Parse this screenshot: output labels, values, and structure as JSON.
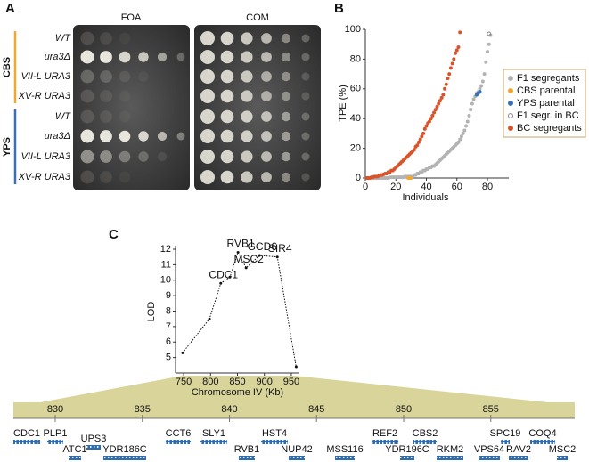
{
  "panel_a": {
    "label": "A",
    "columns": [
      "FOA",
      "COM"
    ],
    "groups": [
      {
        "name": "CBS",
        "color": "#f0a830",
        "rows": [
          "WT",
          "ura3Δ",
          "VII-L URA3",
          "XV-R URA3"
        ]
      },
      {
        "name": "YPS",
        "color": "#3a6fb5",
        "rows": [
          "WT",
          "ura3Δ",
          "VII-L URA3",
          "XV-R URA3"
        ]
      }
    ]
  },
  "chart_data": [
    {
      "type": "scatter",
      "panel": "B",
      "y_label": "TPE (%)",
      "x_label": "Individuals",
      "xlim": [
        0,
        94
      ],
      "xticks": [
        0,
        20,
        40,
        60,
        80
      ],
      "ylim": [
        0,
        100
      ],
      "yticks": [
        0,
        20,
        40,
        60,
        80,
        100
      ],
      "legend": "right",
      "series": [
        {
          "name": "F1 segregants",
          "color": "#b3b3b3",
          "marker": "filled",
          "x": [
            1,
            2,
            3,
            4,
            5,
            6,
            7,
            8,
            9,
            10,
            11,
            12,
            13,
            14,
            15,
            16,
            17,
            18,
            19,
            20,
            21,
            22,
            23,
            24,
            25,
            26,
            27,
            28,
            29,
            30,
            31,
            32,
            33,
            34,
            35,
            36,
            37,
            38,
            39,
            40,
            41,
            42,
            43,
            44,
            45,
            46,
            47,
            48,
            49,
            50,
            51,
            52,
            53,
            54,
            55,
            56,
            57,
            58,
            59,
            60,
            61,
            62,
            63,
            64,
            65,
            66,
            67,
            68,
            69,
            70,
            71,
            72,
            73,
            74,
            75,
            76,
            77,
            78,
            79,
            80,
            81,
            82
          ],
          "values": [
            0,
            0,
            0,
            0,
            0,
            0,
            0,
            0,
            0,
            0,
            0,
            0,
            0,
            0,
            0,
            0.5,
            0.5,
            0.5,
            0.5,
            0.5,
            0.5,
            0.5,
            0.5,
            0.5,
            0.5,
            1,
            1,
            1,
            1,
            1,
            1,
            2,
            2,
            3,
            3,
            4,
            4,
            5,
            5,
            6,
            6,
            7,
            7,
            8,
            8,
            9,
            10,
            11,
            12,
            13,
            14,
            15,
            16,
            17,
            18,
            19,
            20,
            21,
            22,
            23,
            24,
            26,
            28,
            30,
            32,
            35,
            38,
            42,
            46,
            50,
            53,
            55,
            57,
            58,
            60,
            62,
            65,
            70,
            78,
            85,
            90,
            96
          ]
        },
        {
          "name": "CBS parental",
          "color": "#f0a830",
          "marker": "filled",
          "x": [
            28,
            29,
            30
          ],
          "values": [
            0,
            0,
            0
          ]
        },
        {
          "name": "YPS parental",
          "color": "#3a6fb5",
          "marker": "filled",
          "x": [
            73,
            74,
            75
          ],
          "values": [
            56,
            57,
            58
          ]
        },
        {
          "name": "F1 segr. in BC",
          "color": "#888888",
          "marker": "open",
          "x": [
            81
          ],
          "values": [
            97
          ]
        },
        {
          "name": "BC segregants",
          "color": "#d9542a",
          "marker": "filled",
          "x": [
            1,
            2,
            3,
            4,
            5,
            6,
            7,
            8,
            9,
            10,
            11,
            12,
            13,
            14,
            15,
            16,
            17,
            18,
            19,
            20,
            21,
            22,
            23,
            24,
            25,
            26,
            27,
            28,
            29,
            30,
            31,
            32,
            33,
            34,
            35,
            36,
            37,
            38,
            39,
            40,
            41,
            42,
            43,
            44,
            45,
            46,
            47,
            48,
            49,
            50,
            51,
            52,
            53,
            54,
            55,
            56,
            57,
            58,
            59,
            60,
            61,
            62
          ],
          "values": [
            0,
            0,
            0,
            0.5,
            0.5,
            1,
            1,
            1,
            1.5,
            2,
            2,
            2.5,
            3,
            3,
            4,
            4,
            5,
            5,
            6,
            7,
            8,
            9,
            10,
            11,
            12,
            13,
            14,
            15,
            16,
            17,
            18,
            19,
            21,
            22,
            24,
            26,
            28,
            30,
            33,
            35,
            37,
            38,
            40,
            42,
            44,
            46,
            48,
            50,
            52,
            54,
            56,
            60,
            63,
            67,
            70,
            74,
            77,
            80,
            84,
            86,
            88,
            98
          ]
        }
      ]
    },
    {
      "type": "line",
      "panel": "C",
      "y_label": "LOD",
      "x_label": "Chromosome IV (Kb)",
      "xlim": [
        735,
        965
      ],
      "xticks": [
        750,
        800,
        850,
        900,
        950
      ],
      "ylim": [
        4,
        12
      ],
      "yticks": [
        5,
        6,
        7,
        8,
        9,
        10,
        11,
        12
      ],
      "color": "#111111",
      "x": [
        748,
        798,
        819,
        836,
        851,
        866,
        891,
        924,
        959
      ],
      "values": [
        5.3,
        7.5,
        9.8,
        10.2,
        11.8,
        10.8,
        11.6,
        11.5,
        4.4
      ],
      "point_labels": [
        null,
        null,
        "CDC1",
        null,
        "RVB1",
        "MSC2",
        "GCD6",
        "SIR4",
        null
      ]
    }
  ],
  "gene_map": {
    "ticks": [
      830,
      835,
      840,
      845,
      850,
      855
    ],
    "genes": [
      {
        "label": "CDC1",
        "highlight": false
      },
      {
        "label": "PLP1",
        "highlight": false
      },
      {
        "label": "ATC1",
        "highlight": true
      },
      {
        "label": "UPS3",
        "highlight": false
      },
      {
        "label": "YDR186C",
        "highlight": false
      },
      {
        "label": "CCT6",
        "highlight": false
      },
      {
        "label": "SLY1",
        "highlight": false
      },
      {
        "label": "RVB1",
        "highlight": true
      },
      {
        "label": "HST4",
        "highlight": true
      },
      {
        "label": "NUP42",
        "highlight": false
      },
      {
        "label": "MSS116",
        "highlight": false
      },
      {
        "label": "REF2",
        "highlight": true
      },
      {
        "label": "YDR196C",
        "highlight": false
      },
      {
        "label": "CBS2",
        "highlight": false
      },
      {
        "label": "RKM2",
        "highlight": false
      },
      {
        "label": "VPS64",
        "highlight": false
      },
      {
        "label": "SPC19",
        "highlight": false
      },
      {
        "label": "RAV2",
        "highlight": false
      },
      {
        "label": "COQ4",
        "highlight": false
      },
      {
        "label": "MSC2",
        "highlight": false
      }
    ]
  }
}
